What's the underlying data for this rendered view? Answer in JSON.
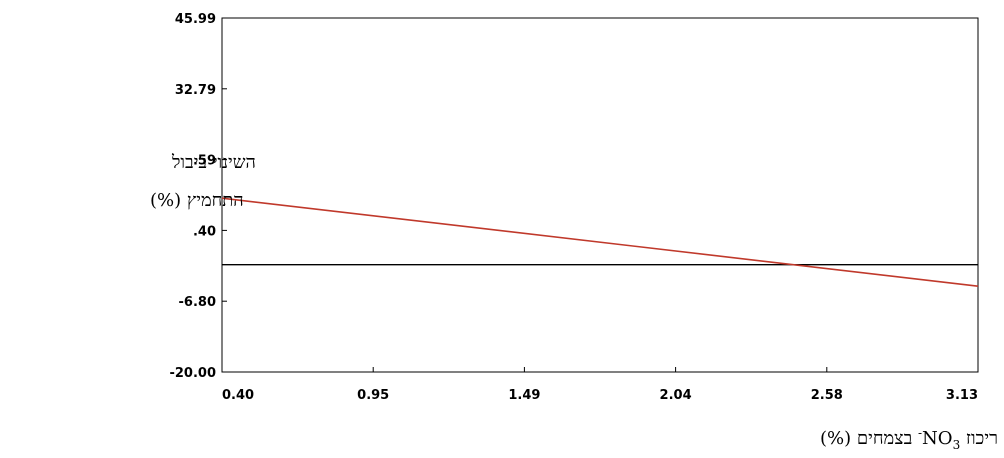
{
  "chart_data": {
    "type": "line",
    "ylabel": [
      "השינוי ביבול",
      "התחמיץ (%)"
    ],
    "xlabel": {
      "prefix": "ריכוז ",
      "chem": "NO",
      "sub": "3",
      "sup": "-",
      "suffix": " בצמחים  (%)"
    },
    "x_ticks": [
      "0.40",
      "0.95",
      "1.49",
      "2.04",
      "2.58",
      "3.13"
    ],
    "y_ticks": [
      "-20.00",
      "-6.80",
      ".40",
      ".59",
      "32.79",
      "45.99"
    ],
    "xlim": [
      0.4,
      3.13
    ],
    "ylim": [
      -20.0,
      45.99
    ],
    "grid": false,
    "reference_line": {
      "y": 0
    },
    "series": [
      {
        "color": "#c0392b",
        "x": [
          0.4,
          3.13
        ],
        "y": [
          12.4,
          -4.0
        ]
      }
    ]
  }
}
